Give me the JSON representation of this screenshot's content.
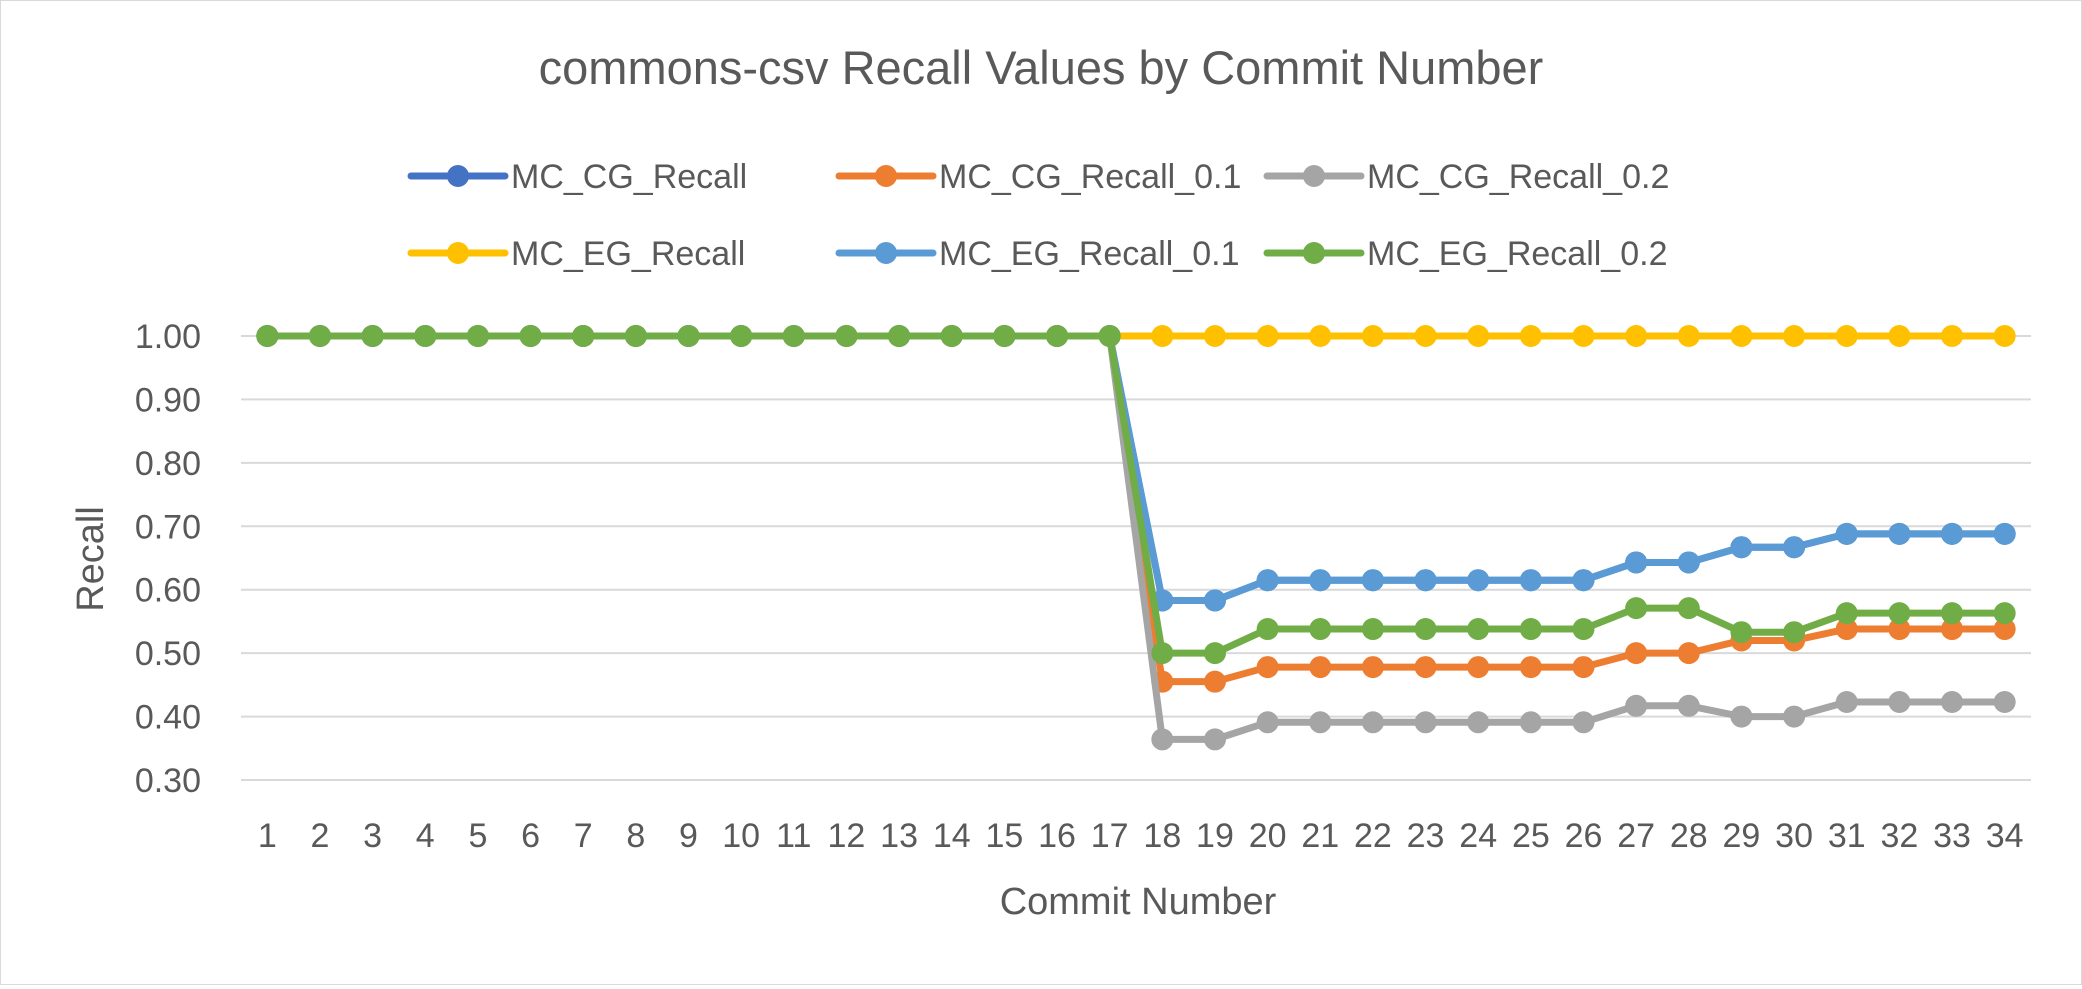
{
  "chart_data": {
    "type": "line",
    "title": "commons-csv Recall Values by Commit Number",
    "xlabel": "Commit Number",
    "ylabel": "Recall",
    "ylim": [
      0.3,
      1.0
    ],
    "yticks": [
      "1.00",
      "0.90",
      "0.80",
      "0.70",
      "0.60",
      "0.50",
      "0.40",
      "0.30"
    ],
    "grid": true,
    "legend_position": "top",
    "categories": [
      "1",
      "2",
      "3",
      "4",
      "5",
      "6",
      "7",
      "8",
      "9",
      "10",
      "11",
      "12",
      "13",
      "14",
      "15",
      "16",
      "17",
      "18",
      "19",
      "20",
      "21",
      "22",
      "23",
      "24",
      "25",
      "26",
      "27",
      "28",
      "29",
      "30",
      "31",
      "32",
      "33",
      "34"
    ],
    "series": [
      {
        "name": "MC_CG_Recall",
        "color": "#4472c4",
        "values": [
          1,
          1,
          1,
          1,
          1,
          1,
          1,
          1,
          1,
          1,
          1,
          1,
          1,
          1,
          1,
          1,
          1,
          0.583,
          0.583,
          0.615,
          0.615,
          0.615,
          0.615,
          0.615,
          0.615,
          0.615,
          0.643,
          0.643,
          0.667,
          0.667,
          0.688,
          0.688,
          0.688,
          0.688
        ]
      },
      {
        "name": "MC_CG_Recall_0.1",
        "color": "#ed7d31",
        "values": [
          1,
          1,
          1,
          1,
          1,
          1,
          1,
          1,
          1,
          1,
          1,
          1,
          1,
          1,
          1,
          1,
          1,
          0.455,
          0.455,
          0.478,
          0.478,
          0.478,
          0.478,
          0.478,
          0.478,
          0.478,
          0.5,
          0.5,
          0.52,
          0.52,
          0.538,
          0.538,
          0.538,
          0.538
        ]
      },
      {
        "name": "MC_CG_Recall_0.2",
        "color": "#a5a5a5",
        "values": [
          1,
          1,
          1,
          1,
          1,
          1,
          1,
          1,
          1,
          1,
          1,
          1,
          1,
          1,
          1,
          1,
          1,
          0.364,
          0.364,
          0.391,
          0.391,
          0.391,
          0.391,
          0.391,
          0.391,
          0.391,
          0.417,
          0.417,
          0.4,
          0.4,
          0.423,
          0.423,
          0.423,
          0.423
        ]
      },
      {
        "name": "MC_EG_Recall",
        "color": "#ffc000",
        "values": [
          1,
          1,
          1,
          1,
          1,
          1,
          1,
          1,
          1,
          1,
          1,
          1,
          1,
          1,
          1,
          1,
          1,
          1,
          1,
          1,
          1,
          1,
          1,
          1,
          1,
          1,
          1,
          1,
          1,
          1,
          1,
          1,
          1,
          1
        ]
      },
      {
        "name": "MC_EG_Recall_0.1",
        "color": "#5b9bd5",
        "values": [
          1,
          1,
          1,
          1,
          1,
          1,
          1,
          1,
          1,
          1,
          1,
          1,
          1,
          1,
          1,
          1,
          1,
          0.583,
          0.583,
          0.615,
          0.615,
          0.615,
          0.615,
          0.615,
          0.615,
          0.615,
          0.643,
          0.643,
          0.667,
          0.667,
          0.688,
          0.688,
          0.688,
          0.688
        ]
      },
      {
        "name": "MC_EG_Recall_0.2",
        "color": "#70ad47",
        "values": [
          1,
          1,
          1,
          1,
          1,
          1,
          1,
          1,
          1,
          1,
          1,
          1,
          1,
          1,
          1,
          1,
          1,
          0.5,
          0.5,
          0.538,
          0.538,
          0.538,
          0.538,
          0.538,
          0.538,
          0.538,
          0.571,
          0.571,
          0.533,
          0.533,
          0.563,
          0.563,
          0.563,
          0.563
        ]
      }
    ]
  }
}
